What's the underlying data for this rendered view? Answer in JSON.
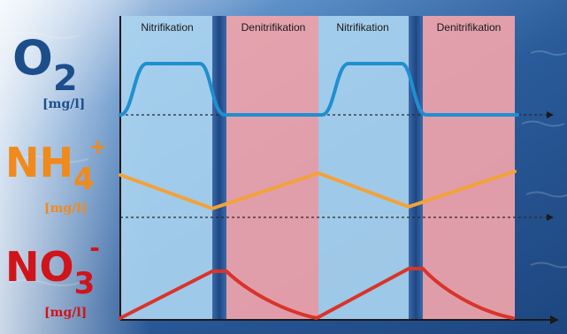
{
  "phases": [
    {
      "label": "Nitrifikation",
      "kind": "nitrification"
    },
    {
      "label": "Denitrifikation",
      "kind": "denitrification"
    },
    {
      "label": "Nitrifikation",
      "kind": "nitrification"
    },
    {
      "label": "Denitrifikation",
      "kind": "denitrification"
    }
  ],
  "species": {
    "o2": {
      "main": "O",
      "sub": "2",
      "sup": "",
      "unit": "[mg/l]",
      "color": "#1d4e8c",
      "line_color": "#1f8fd0"
    },
    "nh4": {
      "main": "NH",
      "sub": "4",
      "sup": "+",
      "unit": "[mg/l]",
      "color": "#f08a1c",
      "line_color": "#f2a23a"
    },
    "no3": {
      "main": "NO",
      "sub": "3",
      "sup": "-",
      "unit": "[mg/l]",
      "color": "#d0141a",
      "line_color": "#d9342a"
    }
  },
  "colors": {
    "background": "#2f5f9c",
    "nitrification_band": "#a9d2ef",
    "denitrification_band": "#f0a4ab",
    "separator": "#274f8e",
    "axis": "#1a1a1a"
  }
}
